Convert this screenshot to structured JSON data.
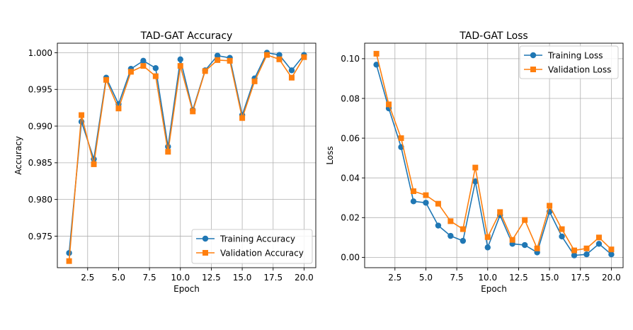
{
  "chart_data": [
    {
      "type": "line",
      "title": "TAD-GAT Accuracy",
      "xlabel": "Epoch",
      "ylabel": "Accuracy",
      "xlim": [
        0.05,
        20.95
      ],
      "ylim": [
        0.9707,
        1.0013
      ],
      "xticks": [
        2.5,
        5.0,
        7.5,
        10.0,
        12.5,
        15.0,
        17.5,
        20.0
      ],
      "xtick_labels": [
        "2.5",
        "5.0",
        "7.5",
        "10.0",
        "12.5",
        "15.0",
        "17.5",
        "20.0"
      ],
      "yticks": [
        0.975,
        0.98,
        0.985,
        0.99,
        0.995,
        1.0
      ],
      "ytick_labels": [
        "0.975",
        "0.980",
        "0.985",
        "0.990",
        "0.995",
        "1.000"
      ],
      "grid": true,
      "legend_position": "lower-right",
      "x": [
        1,
        2,
        3,
        4,
        5,
        6,
        7,
        8,
        9,
        10,
        11,
        12,
        13,
        14,
        15,
        16,
        17,
        18,
        19,
        20
      ],
      "series": [
        {
          "name": "Training Accuracy",
          "color": "#1f77b4",
          "marker": "circle",
          "values": [
            0.9727,
            0.9906,
            0.9855,
            0.9966,
            0.993,
            0.9978,
            0.9989,
            0.9979,
            0.9872,
            0.9991,
            0.9922,
            0.9976,
            0.9996,
            0.9993,
            0.9915,
            0.9965,
            1.0,
            0.9997,
            0.9976,
            0.9997
          ]
        },
        {
          "name": "Validation Accuracy",
          "color": "#ff7f0e",
          "marker": "square",
          "values": [
            0.9716,
            0.9915,
            0.9848,
            0.9963,
            0.9924,
            0.9974,
            0.9982,
            0.9968,
            0.9865,
            0.9982,
            0.992,
            0.9975,
            0.999,
            0.9989,
            0.9911,
            0.9961,
            0.9997,
            0.9991,
            0.9966,
            0.9994
          ]
        }
      ]
    },
    {
      "type": "line",
      "title": "TAD-GAT Loss",
      "xlabel": "Epoch",
      "ylabel": "Loss",
      "xlim": [
        0.05,
        20.95
      ],
      "ylim": [
        -0.0052,
        0.1078
      ],
      "xticks": [
        2.5,
        5.0,
        7.5,
        10.0,
        12.5,
        15.0,
        17.5,
        20.0
      ],
      "xtick_labels": [
        "2.5",
        "5.0",
        "7.5",
        "10.0",
        "12.5",
        "15.0",
        "17.5",
        "20.0"
      ],
      "yticks": [
        0.0,
        0.02,
        0.04,
        0.06,
        0.08,
        0.1
      ],
      "ytick_labels": [
        "0.00",
        "0.02",
        "0.04",
        "0.06",
        "0.08",
        "0.10"
      ],
      "grid": true,
      "legend_position": "upper-right",
      "x": [
        1,
        2,
        3,
        4,
        5,
        6,
        7,
        8,
        9,
        10,
        11,
        12,
        13,
        14,
        15,
        16,
        17,
        18,
        19,
        20
      ],
      "series": [
        {
          "name": "Training Loss",
          "color": "#1f77b4",
          "marker": "circle",
          "values": [
            0.097,
            0.075,
            0.0555,
            0.0282,
            0.0275,
            0.016,
            0.0108,
            0.0083,
            0.0382,
            0.005,
            0.0212,
            0.0068,
            0.0062,
            0.0025,
            0.023,
            0.0105,
            0.001,
            0.0015,
            0.0068,
            0.0015
          ]
        },
        {
          "name": "Validation Loss",
          "color": "#ff7f0e",
          "marker": "square",
          "values": [
            0.1025,
            0.077,
            0.06,
            0.0333,
            0.0313,
            0.027,
            0.0182,
            0.0142,
            0.0452,
            0.0102,
            0.0228,
            0.0088,
            0.0188,
            0.0045,
            0.026,
            0.0142,
            0.0035,
            0.0045,
            0.01,
            0.004
          ]
        }
      ]
    }
  ]
}
